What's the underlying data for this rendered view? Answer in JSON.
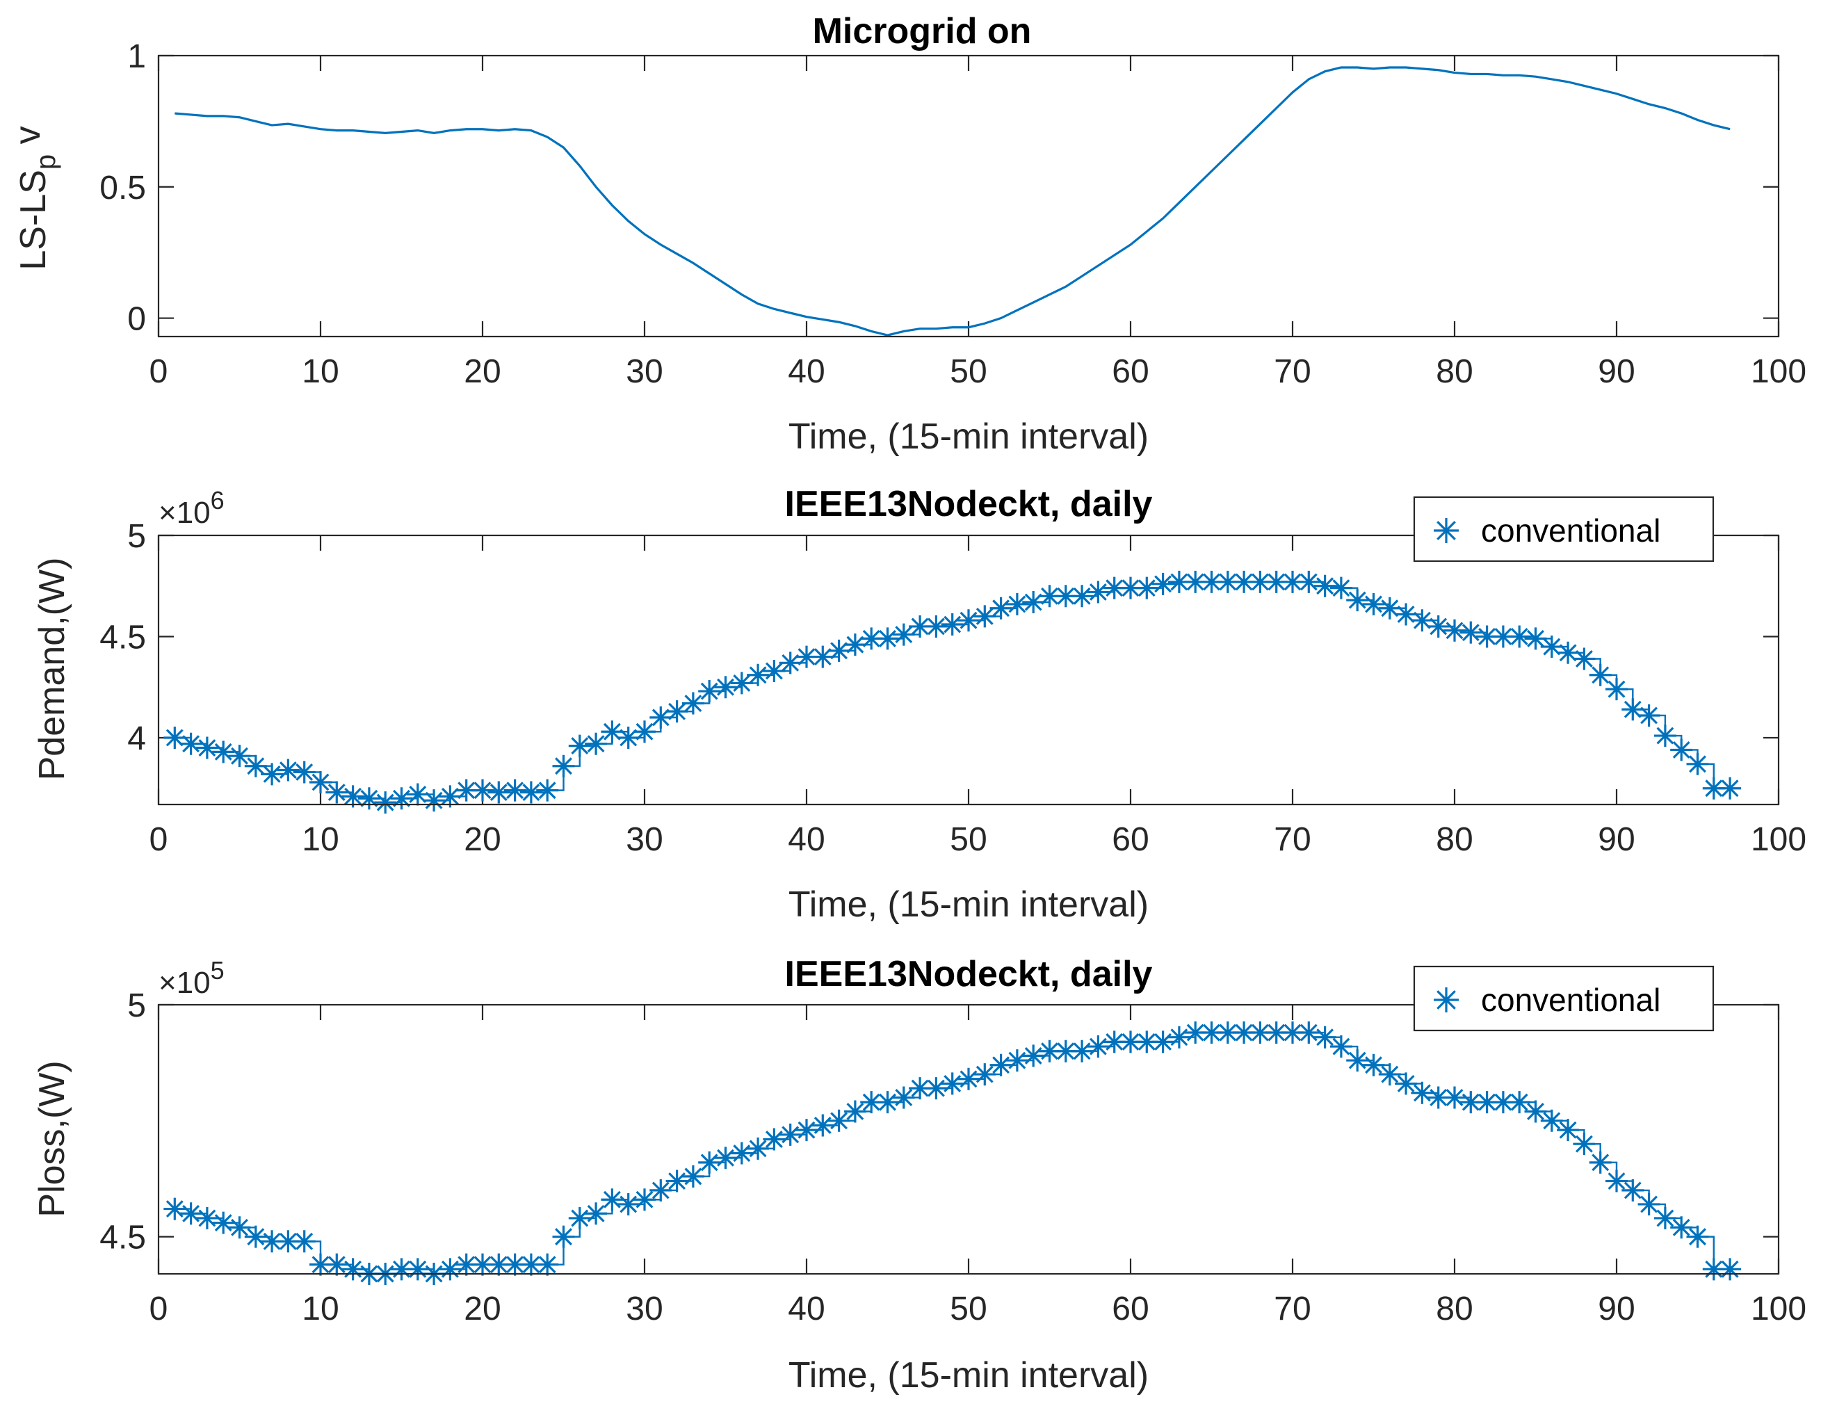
{
  "colors": {
    "series": "#0072BD",
    "axis": "#262626",
    "background": "#ffffff"
  },
  "chart_data": [
    {
      "type": "line",
      "title": "Microgrid on",
      "xlabel": "Time, (15-min interval)",
      "ylabel_main": "LS-LS",
      "ylabel_sub": "p",
      "ylabel_tail": " v",
      "xlim": [
        0,
        100
      ],
      "ylim": [
        -0.07,
        1.0
      ],
      "xticks": [
        "0",
        "10",
        "20",
        "30",
        "40",
        "50",
        "60",
        "70",
        "80",
        "90",
        "100"
      ],
      "yticks": [
        {
          "v": 0,
          "label": "0"
        },
        {
          "v": 0.5,
          "label": "0.5"
        },
        {
          "v": 1,
          "label": "1"
        }
      ],
      "series": [
        {
          "name": "",
          "marker": "none",
          "values": [
            0.78,
            0.775,
            0.77,
            0.77,
            0.765,
            0.75,
            0.735,
            0.74,
            0.73,
            0.72,
            0.715,
            0.715,
            0.71,
            0.705,
            0.71,
            0.715,
            0.705,
            0.715,
            0.72,
            0.72,
            0.715,
            0.72,
            0.715,
            0.69,
            0.65,
            0.58,
            0.5,
            0.43,
            0.37,
            0.32,
            0.28,
            0.245,
            0.21,
            0.17,
            0.13,
            0.09,
            0.055,
            0.035,
            0.02,
            0.005,
            -0.005,
            -0.015,
            -0.03,
            -0.05,
            -0.065,
            -0.05,
            -0.04,
            -0.04,
            -0.035,
            -0.035,
            -0.02,
            0.0,
            0.03,
            0.06,
            0.09,
            0.12,
            0.16,
            0.2,
            0.24,
            0.28,
            0.33,
            0.38,
            0.44,
            0.5,
            0.56,
            0.62,
            0.68,
            0.74,
            0.8,
            0.86,
            0.91,
            0.94,
            0.955,
            0.955,
            0.95,
            0.955,
            0.955,
            0.95,
            0.945,
            0.935,
            0.93,
            0.93,
            0.925,
            0.925,
            0.92,
            0.91,
            0.9,
            0.885,
            0.87,
            0.855,
            0.835,
            0.815,
            0.8,
            0.78,
            0.755,
            0.735,
            0.72
          ]
        }
      ]
    },
    {
      "type": "line",
      "title": "IEEE13Nodeckt, daily",
      "xlabel": "Time, (15-min interval)",
      "ylabel": "Pdemand,(W)",
      "exponent_base": "×10",
      "exponent_power": "6",
      "xlim": [
        0,
        100
      ],
      "ylim": [
        3.67,
        5.0
      ],
      "xticks": [
        "0",
        "10",
        "20",
        "30",
        "40",
        "50",
        "60",
        "70",
        "80",
        "90",
        "100"
      ],
      "yticks": [
        {
          "v": 4,
          "label": "4"
        },
        {
          "v": 4.5,
          "label": "4.5"
        },
        {
          "v": 5,
          "label": "5"
        }
      ],
      "legend": {
        "label": "conventional",
        "position": "top-right"
      },
      "series": [
        {
          "name": "conventional",
          "marker": "asterisk",
          "step": true,
          "values": [
            4.0,
            3.97,
            3.95,
            3.93,
            3.91,
            3.86,
            3.82,
            3.84,
            3.83,
            3.78,
            3.73,
            3.71,
            3.7,
            3.68,
            3.7,
            3.72,
            3.69,
            3.71,
            3.74,
            3.74,
            3.73,
            3.74,
            3.73,
            3.74,
            3.86,
            3.96,
            3.97,
            4.03,
            4.0,
            4.03,
            4.1,
            4.13,
            4.17,
            4.23,
            4.25,
            4.27,
            4.31,
            4.33,
            4.37,
            4.4,
            4.4,
            4.43,
            4.46,
            4.49,
            4.49,
            4.51,
            4.55,
            4.55,
            4.56,
            4.58,
            4.6,
            4.64,
            4.66,
            4.67,
            4.7,
            4.7,
            4.7,
            4.72,
            4.74,
            4.74,
            4.74,
            4.76,
            4.77,
            4.77,
            4.77,
            4.77,
            4.77,
            4.77,
            4.77,
            4.77,
            4.77,
            4.75,
            4.74,
            4.68,
            4.66,
            4.64,
            4.61,
            4.58,
            4.55,
            4.53,
            4.52,
            4.5,
            4.5,
            4.5,
            4.49,
            4.45,
            4.42,
            4.39,
            4.31,
            4.24,
            4.14,
            4.11,
            4.01,
            3.94,
            3.87,
            3.75,
            3.75
          ]
        }
      ]
    },
    {
      "type": "line",
      "title": "IEEE13Nodeckt, daily",
      "xlabel": "Time, (15-min interval)",
      "ylabel": "Ploss,(W)",
      "exponent_base": "×10",
      "exponent_power": "5",
      "xlim": [
        0,
        100
      ],
      "ylim": [
        4.42,
        5.0
      ],
      "xticks": [
        "0",
        "10",
        "20",
        "30",
        "40",
        "50",
        "60",
        "70",
        "80",
        "90",
        "100"
      ],
      "yticks": [
        {
          "v": 4.5,
          "label": "4.5"
        },
        {
          "v": 5,
          "label": "5"
        }
      ],
      "legend": {
        "label": "conventional",
        "position": "top-right"
      },
      "series": [
        {
          "name": "conventional",
          "marker": "asterisk",
          "step": true,
          "values": [
            4.56,
            4.55,
            4.54,
            4.53,
            4.52,
            4.5,
            4.49,
            4.49,
            4.49,
            4.44,
            4.44,
            4.43,
            4.42,
            4.42,
            4.43,
            4.43,
            4.42,
            4.43,
            4.44,
            4.44,
            4.44,
            4.44,
            4.44,
            4.44,
            4.5,
            4.54,
            4.55,
            4.58,
            4.57,
            4.58,
            4.6,
            4.62,
            4.63,
            4.66,
            4.67,
            4.68,
            4.69,
            4.71,
            4.72,
            4.73,
            4.74,
            4.75,
            4.77,
            4.79,
            4.79,
            4.8,
            4.82,
            4.82,
            4.83,
            4.84,
            4.85,
            4.87,
            4.88,
            4.89,
            4.9,
            4.9,
            4.9,
            4.91,
            4.92,
            4.92,
            4.92,
            4.92,
            4.93,
            4.94,
            4.94,
            4.94,
            4.94,
            4.94,
            4.94,
            4.94,
            4.94,
            4.93,
            4.91,
            4.88,
            4.87,
            4.85,
            4.83,
            4.81,
            4.8,
            4.8,
            4.79,
            4.79,
            4.79,
            4.79,
            4.77,
            4.75,
            4.73,
            4.7,
            4.66,
            4.62,
            4.6,
            4.57,
            4.54,
            4.52,
            4.5,
            4.43,
            4.43
          ]
        }
      ]
    }
  ]
}
